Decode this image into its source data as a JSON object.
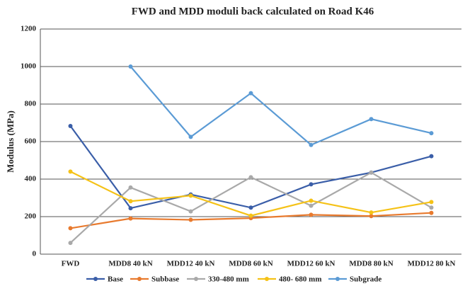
{
  "chart_data": {
    "type": "line",
    "title": "FWD and MDD moduli back calculated on Road K46",
    "y_label": "Modulus (MPa)",
    "categories": [
      "FWD",
      "MDD8 40 kN",
      "MDD12 40 kN",
      "MDD8 60 kN",
      "MDD12 60 kN",
      "MDD8 80 kN",
      "MDD12 80 kN"
    ],
    "series": [
      {
        "name": "Base",
        "color": "#3a5ea8",
        "values": [
          683,
          245,
          318,
          248,
          372,
          435,
          522
        ]
      },
      {
        "name": "Subbase",
        "color": "#e87a2e",
        "values": [
          138,
          190,
          183,
          192,
          210,
          203,
          220
        ]
      },
      {
        "name": "330-480 mm",
        "color": "#a9a9a9",
        "values": [
          60,
          355,
          228,
          410,
          258,
          435,
          248
        ]
      },
      {
        "name": "480- 680 mm",
        "color": "#f5c217",
        "values": [
          440,
          282,
          312,
          205,
          285,
          222,
          278
        ]
      },
      {
        "name": "Subgrade",
        "color": "#5b9bd5",
        "values": [
          null,
          1000,
          625,
          858,
          582,
          720,
          645
        ]
      }
    ],
    "ylim": [
      0,
      1200
    ],
    "yticks": [
      0,
      200,
      400,
      600,
      800,
      1000,
      1200
    ],
    "grid": true
  }
}
